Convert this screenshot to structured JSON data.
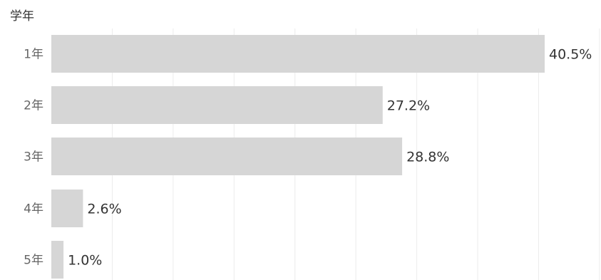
{
  "chart_data": {
    "type": "bar",
    "orientation": "horizontal",
    "y_axis_title": "学年",
    "categories": [
      "1年",
      "2年",
      "3年",
      "4年",
      "5年"
    ],
    "values": [
      40.5,
      27.2,
      28.8,
      2.6,
      1.0
    ],
    "value_labels": [
      "40.5%",
      "27.2%",
      "28.8%",
      "2.6%",
      "1.0%"
    ],
    "unit": "%",
    "xlim": [
      0,
      45
    ],
    "grid": true,
    "bar_color": "#d6d6d6",
    "grid_color": "#ececec",
    "label_color": "#333333",
    "tick_color": "#666666"
  }
}
